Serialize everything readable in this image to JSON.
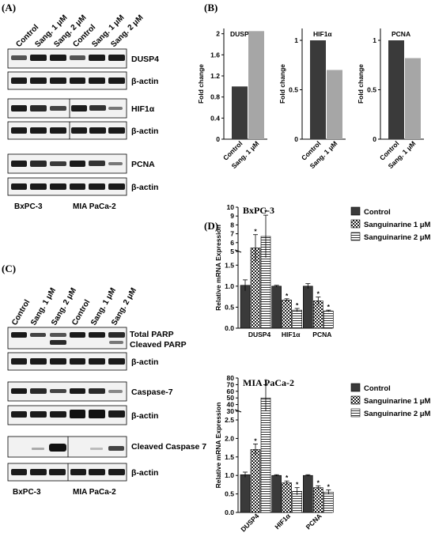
{
  "panels": {
    "a": "(A)",
    "b": "(B)",
    "c": "(C)",
    "d": "(D)"
  },
  "blot_a": {
    "lanes": [
      "Control",
      "Sang. 1 μM",
      "Sang. 2 μM",
      "Control",
      "Sang. 1 μM",
      "Sang. 2 μM"
    ],
    "rows": [
      "DUSP4",
      "β-actin",
      "HIF1α",
      "β-actin",
      "PCNA",
      "β-actin"
    ],
    "cells": [
      "BxPC-3",
      "MIA PaCa-2"
    ]
  },
  "blot_c": {
    "lanes": [
      "Control",
      "Sang. 1 μM",
      "Sang. 2 μM",
      "Control",
      "Sang. 1 μM",
      "Sang. 2 μM"
    ],
    "rows": [
      "Total PARP",
      "Cleaved PARP",
      "β-actin",
      "Caspase-7",
      "β-actin",
      "Cleaved Caspase 7",
      "β-actin"
    ],
    "cells": [
      "BxPC-3",
      "MIA PaCa-2"
    ]
  },
  "colors": {
    "dark": "#3a3a3a",
    "light": "#a6a6a6",
    "band": "#1a1a1a"
  },
  "chart_data": [
    {
      "type": "bar",
      "title": "DUSP4",
      "ylabel": "Fold change",
      "categories": [
        "Control",
        "Sang. 1 μM"
      ],
      "values": [
        1.0,
        2.05
      ],
      "ylim": [
        0,
        2.0
      ],
      "yticks": [
        "0",
        "0.4",
        "0.8",
        "1.2",
        "1.6",
        "2"
      ]
    },
    {
      "type": "bar",
      "title": "HIF1α",
      "ylabel": "Fold change",
      "categories": [
        "Control",
        "Sang. 1 μM"
      ],
      "values": [
        1.0,
        0.7
      ],
      "ylim": [
        0,
        1.2
      ],
      "yticks": [
        "0",
        "0.5",
        "1"
      ]
    },
    {
      "type": "bar",
      "title": "PCNA",
      "ylabel": "Fold change",
      "categories": [
        "Control",
        "Sang. 1 μM"
      ],
      "values": [
        1.0,
        0.82
      ],
      "ylim": [
        0,
        1.2
      ],
      "yticks": [
        "0",
        "0.5",
        "1"
      ]
    },
    {
      "type": "bar",
      "title": "BxPC-3",
      "ylabel": "Relative mRNA Expression",
      "categories": [
        "DUSP4",
        "HIF1α",
        "PCNA"
      ],
      "series": [
        {
          "name": "Control",
          "values": [
            1.02,
            1.0,
            1.0
          ],
          "errors": [
            0.13,
            0.02,
            0.06
          ]
        },
        {
          "name": "Sanguinarine 1 μM",
          "values": [
            5.4,
            0.67,
            0.65
          ],
          "errors": [
            1.5,
            0.03,
            0.09
          ]
        },
        {
          "name": "Sanguinarine 2 μM",
          "values": [
            6.7,
            0.43,
            0.41
          ],
          "errors": [
            2.4,
            0.04,
            0.02
          ]
        }
      ],
      "ytick_labels_lower": [
        "0.0",
        "0.5",
        "1.0",
        "1.5"
      ],
      "ytick_labels_upper": [
        "5",
        "6",
        "7",
        "8",
        "9",
        "10"
      ],
      "significance": "*"
    },
    {
      "type": "bar",
      "title": "MIA PaCa-2",
      "ylabel": "Relative mRNA Expression",
      "categories": [
        "DUSP4",
        "HIF1α",
        "PCNA"
      ],
      "series": [
        {
          "name": "Control",
          "values": [
            1.02,
            1.0,
            1.0
          ],
          "errors": [
            0.07,
            0.02,
            0.02
          ]
        },
        {
          "name": "Sanguinarine 1 μM",
          "values": [
            1.7,
            0.8,
            0.67
          ],
          "errors": [
            0.15,
            0.05,
            0.05
          ]
        },
        {
          "name": "Sanguinarine 2 μM",
          "values": [
            50,
            0.57,
            0.55
          ],
          "errors": [
            20,
            0.1,
            0.06
          ]
        }
      ],
      "ytick_labels_lower": [
        "0.0",
        "0.5",
        "1.0",
        "1.5",
        "2.0",
        "2.5"
      ],
      "ytick_labels_upper": [
        "30",
        "40",
        "50",
        "60",
        "70",
        "80"
      ],
      "significance": "*"
    }
  ]
}
